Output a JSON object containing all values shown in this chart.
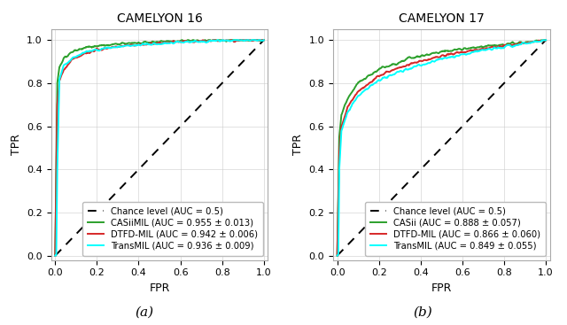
{
  "subplot_titles": [
    "CAMELYON 16",
    "CAMELYON 17"
  ],
  "xlabel": "FPR",
  "ylabel": "TPR",
  "xlim": [
    -0.02,
    1.02
  ],
  "ylim": [
    -0.02,
    1.05
  ],
  "xticks": [
    0.0,
    0.2,
    0.4,
    0.6,
    0.8,
    1.0
  ],
  "yticks": [
    0.0,
    0.2,
    0.4,
    0.6,
    0.8,
    1.0
  ],
  "subplot_labels": [
    "(a)",
    "(b)"
  ],
  "camelyon16": {
    "chance": {
      "label": "Chance level (AUC = 0.5)",
      "color": "black",
      "linestyle": "--"
    },
    "casiimil": {
      "label": "CASiiMIL (AUC = 0.955 ± 0.013)",
      "color": "#2ca02c",
      "auc": 0.955,
      "keypoints_fpr": [
        0.0,
        0.01,
        0.02,
        0.04,
        0.08,
        0.15,
        0.25,
        0.4,
        0.6,
        0.8,
        1.0
      ],
      "keypoints_tpr": [
        0.0,
        0.8,
        0.875,
        0.91,
        0.945,
        0.965,
        0.978,
        0.988,
        0.996,
        0.999,
        1.0
      ]
    },
    "dtfd": {
      "label": "DTFD-MIL (AUC = 0.942 ± 0.006)",
      "color": "#d62728",
      "auc": 0.942,
      "keypoints_fpr": [
        0.0,
        0.01,
        0.02,
        0.04,
        0.08,
        0.15,
        0.25,
        0.4,
        0.6,
        0.8,
        1.0
      ],
      "keypoints_tpr": [
        0.0,
        0.7,
        0.81,
        0.86,
        0.91,
        0.94,
        0.965,
        0.98,
        0.993,
        0.998,
        1.0
      ]
    },
    "transmil": {
      "label": "TransMIL (AUC = 0.936 ± 0.009)",
      "color": "cyan",
      "auc": 0.936,
      "keypoints_fpr": [
        0.0,
        0.005,
        0.01,
        0.02,
        0.04,
        0.08,
        0.15,
        0.25,
        0.4,
        0.6,
        0.8,
        1.0
      ],
      "keypoints_tpr": [
        0.0,
        0.0,
        0.4,
        0.82,
        0.88,
        0.915,
        0.945,
        0.963,
        0.979,
        0.99,
        0.997,
        1.0
      ]
    }
  },
  "camelyon17": {
    "chance": {
      "label": "Chance level (AUC = 0.5)",
      "color": "black",
      "linestyle": "--"
    },
    "casii": {
      "label": "CASii (AUC = 0.888 ± 0.057)",
      "color": "#2ca02c",
      "auc": 0.888,
      "keypoints_fpr": [
        0.0,
        0.01,
        0.02,
        0.05,
        0.1,
        0.2,
        0.35,
        0.5,
        0.7,
        0.85,
        1.0
      ],
      "keypoints_tpr": [
        0.0,
        0.55,
        0.65,
        0.73,
        0.8,
        0.865,
        0.915,
        0.945,
        0.97,
        0.985,
        1.0
      ]
    },
    "dtfd": {
      "label": "DTFD-MIL (AUC = 0.866 ± 0.060)",
      "color": "#d62728",
      "auc": 0.866,
      "keypoints_fpr": [
        0.0,
        0.01,
        0.02,
        0.05,
        0.1,
        0.2,
        0.35,
        0.5,
        0.7,
        0.85,
        1.0
      ],
      "keypoints_tpr": [
        0.0,
        0.48,
        0.6,
        0.69,
        0.76,
        0.835,
        0.888,
        0.925,
        0.96,
        0.98,
        1.0
      ]
    },
    "transmil": {
      "label": "TransMIL (AUC = 0.849 ± 0.055)",
      "color": "cyan",
      "auc": 0.849,
      "keypoints_fpr": [
        0.0,
        0.005,
        0.01,
        0.02,
        0.05,
        0.1,
        0.2,
        0.35,
        0.5,
        0.7,
        0.85,
        1.0
      ],
      "keypoints_tpr": [
        0.0,
        0.0,
        0.4,
        0.58,
        0.67,
        0.74,
        0.815,
        0.87,
        0.912,
        0.952,
        0.975,
        1.0
      ]
    }
  },
  "legend_loc": "lower right",
  "legend_fontsize": 7.2,
  "title_fontsize": 10,
  "axis_fontsize": 9,
  "tick_fontsize": 8,
  "linewidth": 1.4,
  "background_color": "#ffffff",
  "grid_color": "#cccccc",
  "grid_alpha": 0.8
}
